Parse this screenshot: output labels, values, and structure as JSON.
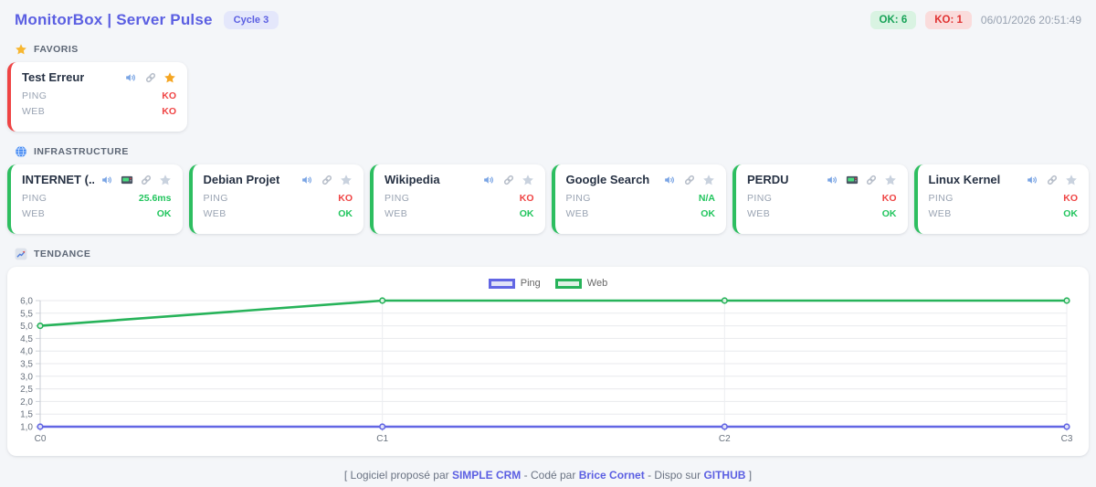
{
  "header": {
    "title": "MonitorBox | Server Pulse",
    "cycle_badge": "Cycle 3",
    "ok_badge": "OK: 6",
    "ko_badge": "KO: 1",
    "timestamp": "06/01/2026 20:51:49"
  },
  "sections": {
    "favoris": "FAVORIS",
    "infrastructure": "INFRASTRUCTURE",
    "tendance": "TENDANCE"
  },
  "colors": {
    "brand": "#5b5fe2",
    "ok_text": "#22c55e",
    "ko_text": "#ef4444",
    "card_ok_border": "#2dbe60",
    "card_error_border": "#ef4444",
    "star_on": "#f5a623",
    "star_off": "#c9d2de"
  },
  "favorites": [
    {
      "name": "Test Erreur",
      "accent": "#ef4444",
      "star_color": "#f5a623",
      "rows": [
        {
          "label": "PING",
          "value": "KO",
          "color": "#ef4444"
        },
        {
          "label": "WEB",
          "value": "KO",
          "color": "#ef4444"
        }
      ]
    }
  ],
  "infrastructure": [
    {
      "name": "INTERNET (...",
      "accent": "#2dbe60",
      "star_color": "#c9d2de",
      "rows": [
        {
          "label": "PING",
          "value": "25.6ms",
          "color": "#22c55e"
        },
        {
          "label": "WEB",
          "value": "OK",
          "color": "#22c55e"
        }
      ]
    },
    {
      "name": "Debian Projet",
      "accent": "#2dbe60",
      "star_color": "#c9d2de",
      "rows": [
        {
          "label": "PING",
          "value": "KO",
          "color": "#ef4444"
        },
        {
          "label": "WEB",
          "value": "OK",
          "color": "#22c55e"
        }
      ]
    },
    {
      "name": "Wikipedia",
      "accent": "#2dbe60",
      "star_color": "#c9d2de",
      "rows": [
        {
          "label": "PING",
          "value": "KO",
          "color": "#ef4444"
        },
        {
          "label": "WEB",
          "value": "OK",
          "color": "#22c55e"
        }
      ]
    },
    {
      "name": "Google Search",
      "accent": "#2dbe60",
      "star_color": "#c9d2de",
      "rows": [
        {
          "label": "PING",
          "value": "N/A",
          "color": "#22c55e"
        },
        {
          "label": "WEB",
          "value": "OK",
          "color": "#22c55e"
        }
      ]
    },
    {
      "name": "PERDU",
      "accent": "#2dbe60",
      "star_color": "#c9d2de",
      "rows": [
        {
          "label": "PING",
          "value": "KO",
          "color": "#ef4444"
        },
        {
          "label": "WEB",
          "value": "OK",
          "color": "#22c55e"
        }
      ]
    },
    {
      "name": "Linux Kernel",
      "accent": "#2dbe60",
      "star_color": "#c9d2de",
      "rows": [
        {
          "label": "PING",
          "value": "KO",
          "color": "#ef4444"
        },
        {
          "label": "WEB",
          "value": "OK",
          "color": "#22c55e"
        }
      ]
    }
  ],
  "chart_data": {
    "type": "line",
    "categories": [
      "C0",
      "C1",
      "C2",
      "C3"
    ],
    "series": [
      {
        "name": "Ping",
        "color": "#6266e4",
        "fill": "#e2e3f7",
        "values": [
          1,
          1,
          1,
          1
        ]
      },
      {
        "name": "Web",
        "color": "#27b35a",
        "fill": "#e0f2e6",
        "values": [
          5,
          6,
          6,
          6
        ]
      }
    ],
    "ylim": [
      1,
      6
    ],
    "ytick_step": 0.5,
    "decimal_style": "comma",
    "legend_position": "top-center",
    "grid": true
  },
  "footer": {
    "prefix": "[ Logiciel proposé par",
    "link_crm": "SIMPLE CRM",
    "mid1": "- Codé par",
    "link_author": "Brice Cornet",
    "mid2": "- Dispo sur",
    "link_github": "GITHUB",
    "suffix": "]"
  }
}
